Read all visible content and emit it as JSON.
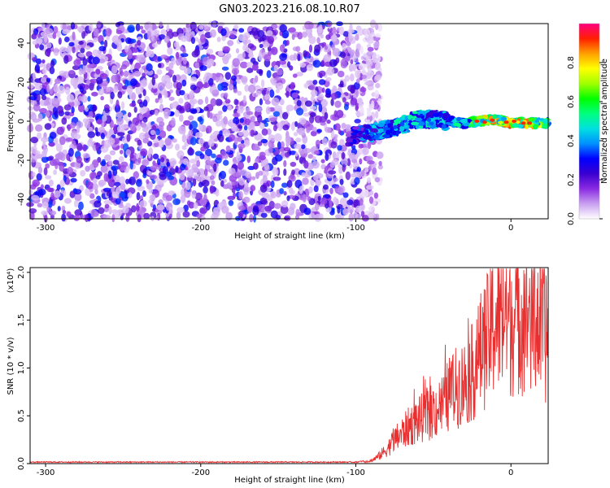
{
  "title": "GN03.2023.216.08.10.R07",
  "chart_data": [
    {
      "type": "heatmap",
      "xlabel": "Height of straight line (km)",
      "ylabel": "Frequency (Hz)",
      "xlim": [
        -310,
        24
      ],
      "ylim": [
        -50,
        50
      ],
      "xticks": [
        -300,
        -200,
        -100,
        0
      ],
      "yticks": [
        -40,
        -20,
        0,
        20,
        40
      ],
      "colorbar": {
        "label": "Normalized spectral amplitude",
        "range": [
          0,
          1
        ],
        "ticks": [
          "0.0",
          "0.2",
          "0.4",
          "0.6",
          "0.8"
        ],
        "colors": [
          "#ffffff",
          "#c9a0f0",
          "#8a2be2",
          "#3a00d0",
          "#0000ff",
          "#0090ff",
          "#00e0e0",
          "#00ff80",
          "#00ff00",
          "#a0ff00",
          "#ffff00",
          "#ffa000",
          "#ff2000",
          "#ff0080"
        ]
      },
      "noise_region": {
        "x": [
          -310,
          -92
        ],
        "amplitude": [
          0.05,
          0.35
        ]
      },
      "ridge": {
        "x": [
          -105,
          -90,
          -80,
          -70,
          -60,
          -50,
          -40,
          -30,
          -20,
          -10,
          0,
          10,
          20,
          24
        ],
        "frequency": [
          -8,
          -6,
          -4,
          -2,
          1,
          1,
          0,
          -1,
          0,
          1,
          -1,
          -1,
          -1,
          -1
        ],
        "amplitude": [
          0.25,
          0.45,
          0.5,
          0.5,
          0.5,
          0.5,
          0.5,
          0.55,
          0.8,
          0.85,
          0.88,
          0.9,
          0.7,
          0.6
        ]
      }
    },
    {
      "type": "line",
      "xlabel": "Height of straight line (km)",
      "ylabel": "SNR (10 * v/v)",
      "multiplier": "(x10⁴)",
      "xlim": [
        -310,
        24
      ],
      "ylim": [
        0,
        2.05
      ],
      "xticks": [
        -300,
        -200,
        -100,
        0
      ],
      "yticks": [
        "0.0",
        "0.5",
        "1.0",
        "1.5",
        "2.0"
      ],
      "line_color": "#e83030",
      "series": [
        {
          "x": [
            -310,
            -100,
            -90,
            -85,
            -80,
            -75,
            -70,
            -65,
            -60,
            -55,
            -50,
            -45,
            -40,
            -35,
            -30,
            -25,
            -20,
            -15,
            -10,
            -5,
            0,
            5,
            10,
            15,
            20,
            24
          ],
          "y": [
            0.01,
            0.01,
            0.03,
            0.08,
            0.15,
            0.25,
            0.32,
            0.4,
            0.45,
            0.5,
            0.55,
            0.6,
            0.72,
            0.8,
            0.85,
            0.95,
            1.15,
            1.3,
            1.5,
            1.55,
            1.5,
            1.55,
            1.55,
            1.5,
            1.45,
            1.3
          ]
        }
      ]
    }
  ]
}
